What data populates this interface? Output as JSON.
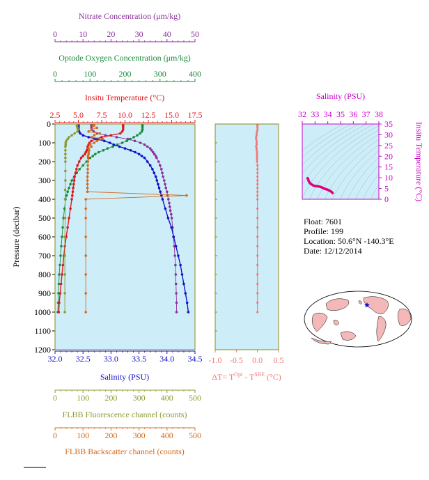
{
  "colors": {
    "plot_bg": "#cdeef8",
    "nitrate": "#8b2f9b",
    "oxygen": "#1a8a3a",
    "temperature": "#e0161c",
    "salinity": "#1111cc",
    "fluorescence": "#8c9a2c",
    "backscatter": "#d46a1c",
    "delta_t": "#f07a7a",
    "ts_salinity": "#cc00cc",
    "ts_line": "#e0007a",
    "frame_olive": "#8a8a1a",
    "map_land": "#f4b8b8",
    "map_ocean": "#ffffff"
  },
  "axes": {
    "nitrate": {
      "label": "Nitrate Concentration (μm/kg)",
      "ticks": [
        "0",
        "10",
        "20",
        "30",
        "40",
        "50"
      ],
      "range": [
        0,
        50
      ]
    },
    "oxygen": {
      "label": "Optode Oxygen Concentration (μm/kg)",
      "ticks": [
        "0",
        "100",
        "200",
        "300",
        "400"
      ],
      "range": [
        0,
        400
      ]
    },
    "temperature": {
      "label": "Insitu Temperature (°C)",
      "ticks": [
        "2.5",
        "5.0",
        "7.5",
        "10.0",
        "12.5",
        "15.0",
        "17.5"
      ],
      "range": [
        2.5,
        17.5
      ]
    },
    "pressure": {
      "label": "Pressure (decibar)",
      "ticks": [
        "0",
        "100",
        "200",
        "300",
        "400",
        "500",
        "600",
        "700",
        "800",
        "900",
        "1000",
        "1100",
        "1200"
      ],
      "range": [
        0,
        1200
      ]
    },
    "salinity": {
      "label": "Salinity (PSU)",
      "ticks": [
        "32.0",
        "32.5",
        "33.0",
        "33.5",
        "34.0",
        "34.5"
      ],
      "range": [
        32.0,
        34.5
      ]
    },
    "fluorescence": {
      "label": "FLBB Fluorescence channel (counts)",
      "ticks": [
        "0",
        "100",
        "200",
        "300",
        "400",
        "500"
      ],
      "range": [
        0,
        500
      ]
    },
    "backscatter": {
      "label": "FLBB Backscatter channel (counts)",
      "ticks": [
        "0",
        "100",
        "200",
        "300",
        "400",
        "500"
      ],
      "range": [
        0,
        500
      ]
    },
    "delta_t": {
      "label_main": "ΔT= T",
      "label_sup1": "Opt",
      "label_mid": " - T",
      "label_sup2": "SBE",
      "label_end": " (°C)",
      "ticks": [
        "-1.0",
        "-0.5",
        "0.0",
        "0.5"
      ],
      "range": [
        -1.0,
        0.5
      ]
    },
    "ts_salinity": {
      "label": "Salinity (PSU)",
      "ticks": [
        "32",
        "33",
        "34",
        "35",
        "36",
        "37",
        "38"
      ],
      "range": [
        32,
        38
      ]
    },
    "ts_temperature": {
      "label": "Insitu Temperature (°C)",
      "ticks": [
        "0",
        "5",
        "10",
        "15",
        "20",
        "25",
        "30",
        "35"
      ],
      "range": [
        0,
        35
      ]
    }
  },
  "info": {
    "float": "Float:  7601",
    "profile": "Profile:  199",
    "location": "Location:  50.6°N  -140.3°E",
    "date": "Date:  12/12/2014"
  },
  "chart_data": [
    {
      "type": "line",
      "title": "",
      "ylabel": "Pressure (decibar)",
      "ylim": [
        1200,
        0
      ],
      "series": [
        {
          "name": "Nitrate Concentration",
          "axis": "nitrate",
          "pressure": [
            5,
            10,
            20,
            30,
            40,
            50,
            60,
            70,
            80,
            90,
            100,
            110,
            120,
            130,
            140,
            150,
            160,
            170,
            180,
            200,
            220,
            240,
            260,
            280,
            300,
            320,
            340,
            360,
            380,
            400,
            420,
            440,
            460,
            480,
            500,
            550,
            600,
            650,
            700,
            750,
            800,
            850,
            900,
            950,
            1000
          ],
          "values": [
            13,
            13,
            13,
            13.2,
            13.8,
            15,
            18,
            22,
            26,
            28.5,
            30.5,
            32,
            33,
            34,
            34.5,
            35,
            35.5,
            36,
            36.3,
            37,
            37.5,
            38,
            38.3,
            38.6,
            39,
            39.3,
            39.6,
            40,
            40.2,
            40.5,
            40.8,
            41,
            41.2,
            41.5,
            41.7,
            42,
            42.3,
            42.6,
            42.8,
            43,
            43.1,
            43.2,
            43.3,
            43.4,
            43.4
          ]
        },
        {
          "name": "Optode Oxygen Concentration",
          "axis": "oxygen",
          "pressure": [
            5,
            10,
            20,
            30,
            40,
            50,
            60,
            70,
            80,
            90,
            100,
            110,
            120,
            130,
            140,
            150,
            160,
            170,
            180,
            200,
            220,
            240,
            260,
            280,
            300,
            320,
            340,
            360,
            380,
            400,
            450,
            500,
            550,
            600,
            650,
            700,
            750,
            800,
            850,
            900,
            950,
            1000
          ],
          "values": [
            250,
            250,
            250,
            250,
            248,
            243,
            235,
            225,
            215,
            205,
            192,
            178,
            165,
            150,
            138,
            125,
            115,
            108,
            100,
            90,
            80,
            70,
            62,
            55,
            48,
            44,
            40,
            36,
            33,
            30,
            27,
            24,
            22,
            20,
            18,
            16,
            14,
            12,
            11,
            10,
            9,
            8
          ]
        },
        {
          "name": "Insitu Temperature",
          "axis": "temperature",
          "pressure": [
            5,
            10,
            20,
            30,
            40,
            50,
            60,
            70,
            80,
            90,
            100,
            110,
            120,
            130,
            140,
            150,
            160,
            170,
            180,
            200,
            220,
            240,
            260,
            280,
            300,
            320,
            340,
            360,
            380,
            400,
            450,
            500,
            550,
            600,
            650,
            700,
            750,
            800,
            850,
            900,
            950,
            1000
          ],
          "values": [
            9.8,
            9.8,
            9.8,
            9.8,
            9.7,
            9.5,
            8.5,
            7.5,
            6.8,
            6.4,
            6.2,
            6.1,
            6.0,
            6.0,
            5.9,
            5.8,
            5.7,
            5.5,
            5.3,
            5.1,
            4.9,
            4.8,
            4.7,
            4.6,
            4.55,
            4.5,
            4.45,
            4.4,
            4.35,
            4.3,
            4.15,
            4.0,
            3.85,
            3.7,
            3.55,
            3.45,
            3.35,
            3.25,
            3.15,
            3.05,
            2.95,
            2.9
          ]
        },
        {
          "name": "Salinity",
          "axis": "salinity",
          "pressure": [
            5,
            10,
            20,
            30,
            40,
            50,
            60,
            70,
            80,
            90,
            100,
            110,
            120,
            130,
            140,
            150,
            160,
            170,
            180,
            200,
            220,
            240,
            260,
            280,
            300,
            320,
            340,
            360,
            380,
            400,
            450,
            500,
            550,
            600,
            650,
            700,
            750,
            800,
            850,
            900,
            950,
            1000
          ],
          "values": [
            32.42,
            32.42,
            32.42,
            32.42,
            32.43,
            32.45,
            32.5,
            32.6,
            32.75,
            32.88,
            32.98,
            33.05,
            33.15,
            33.25,
            33.35,
            33.43,
            33.5,
            33.55,
            33.6,
            33.65,
            33.7,
            33.74,
            33.77,
            33.8,
            33.82,
            33.84,
            33.86,
            33.88,
            33.9,
            33.92,
            33.97,
            34.02,
            34.08,
            34.12,
            34.16,
            34.2,
            34.24,
            34.27,
            34.3,
            34.33,
            34.36,
            34.38
          ]
        },
        {
          "name": "FLBB Fluorescence channel",
          "axis": "fluorescence",
          "pressure": [
            5,
            10,
            20,
            30,
            40,
            50,
            60,
            70,
            80,
            90,
            100,
            110,
            120,
            140,
            160,
            180,
            200,
            250,
            300,
            350,
            400,
            500,
            600,
            700,
            800,
            900,
            1000
          ],
          "values": [
            80,
            78,
            80,
            82,
            80,
            70,
            60,
            50,
            45,
            40,
            38,
            38,
            37,
            37,
            37,
            37,
            37,
            37,
            37,
            36,
            36,
            36,
            35,
            35,
            35,
            35,
            35
          ]
        },
        {
          "name": "FLBB Backscatter channel",
          "axis": "backscatter",
          "pressure": [
            5,
            10,
            20,
            30,
            40,
            50,
            60,
            70,
            80,
            90,
            100,
            110,
            120,
            130,
            140,
            150,
            160,
            170,
            180,
            200,
            220,
            240,
            260,
            280,
            300,
            320,
            340,
            360,
            380,
            400,
            450,
            500,
            600,
            700,
            800,
            900,
            1000
          ],
          "values": [
            140,
            135,
            150,
            130,
            120,
            160,
            140,
            130,
            170,
            150,
            140,
            125,
            130,
            120,
            122,
            120,
            120,
            118,
            118,
            118,
            117,
            117,
            117,
            116,
            116,
            116,
            116,
            116,
            470,
            110,
            110,
            110,
            110,
            110,
            110,
            110,
            110
          ]
        }
      ]
    },
    {
      "type": "scatter",
      "xlabel": "ΔT= TOpt - TSBE (°C)",
      "ylabel": "Pressure (decibar)",
      "xlim": [
        -1.0,
        0.5
      ],
      "ylim": [
        1200,
        0
      ],
      "series": [
        {
          "name": "ΔT",
          "pressure": [
            5,
            10,
            20,
            30,
            40,
            50,
            60,
            70,
            80,
            90,
            100,
            110,
            120,
            130,
            140,
            150,
            160,
            170,
            180,
            190,
            200,
            220,
            240,
            260,
            280,
            300,
            320,
            340,
            360,
            380,
            400,
            450,
            500,
            550,
            600,
            650,
            700,
            750,
            800,
            850,
            900,
            950,
            1000
          ],
          "values": [
            0.0,
            0.0,
            0.0,
            0.0,
            -0.01,
            -0.02,
            -0.02,
            -0.03,
            -0.03,
            -0.02,
            -0.02,
            -0.02,
            -0.03,
            -0.02,
            -0.02,
            -0.01,
            -0.01,
            -0.01,
            -0.01,
            -0.01,
            -0.01,
            0.0,
            0.0,
            0.0,
            0.0,
            0.0,
            0.0,
            0.0,
            0.0,
            0.0,
            0.0,
            0.0,
            0.0,
            0.0,
            0.0,
            0.0,
            0.0,
            0.0,
            0.0,
            0.0,
            0.0,
            0.0,
            0.0
          ]
        }
      ]
    },
    {
      "type": "line",
      "xlabel": "Salinity (PSU)",
      "ylabel": "Insitu Temperature (°C)",
      "xlim": [
        32,
        38
      ],
      "ylim": [
        0,
        35
      ],
      "series": [
        {
          "name": "T-S",
          "salinity": [
            32.42,
            32.45,
            32.5,
            32.6,
            32.75,
            32.88,
            32.98,
            33.1,
            33.25,
            33.4,
            33.5,
            33.6,
            33.7,
            33.8,
            33.9,
            34.0,
            34.1,
            34.2,
            34.3,
            34.38
          ],
          "temperature": [
            9.8,
            9.5,
            8.5,
            7.5,
            6.8,
            6.4,
            6.2,
            6.1,
            6.0,
            5.8,
            5.6,
            5.3,
            5.0,
            4.8,
            4.6,
            4.4,
            4.1,
            3.8,
            3.4,
            2.9
          ]
        }
      ]
    }
  ]
}
